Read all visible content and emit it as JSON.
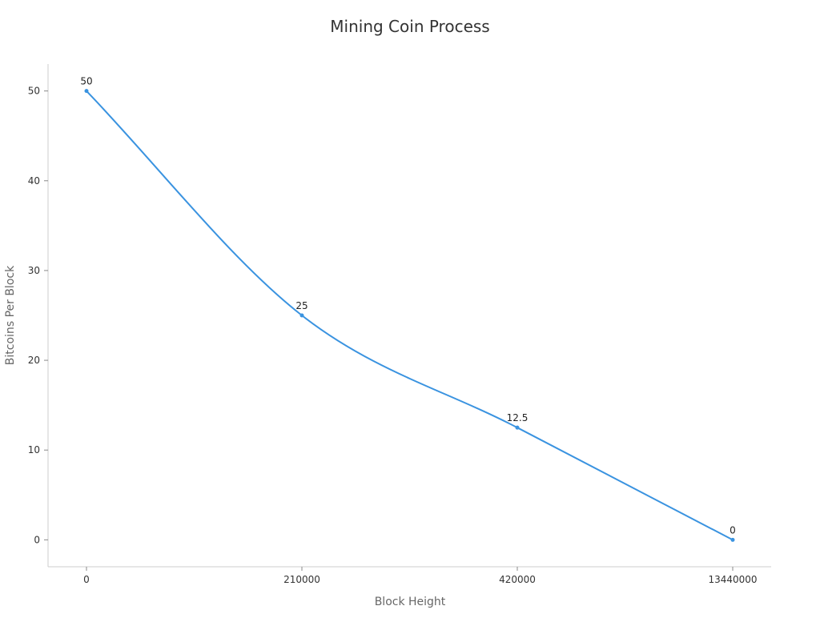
{
  "chart_data": {
    "type": "line",
    "title": "Mining Coin Process",
    "xlabel": "Block Height",
    "ylabel": "Bitcoins Per Block",
    "categories": [
      "0",
      "210000",
      "420000",
      "13440000"
    ],
    "series": [
      {
        "values": [
          50,
          25,
          12.5,
          0
        ],
        "color": "#3a93e0",
        "smooth": true,
        "data_labels": [
          "50",
          "25",
          "12.5",
          "0"
        ]
      }
    ],
    "ylim": [
      -3,
      53
    ],
    "y_ticks": [
      0,
      10,
      20,
      30,
      40,
      50
    ],
    "grid": false,
    "legend": "none"
  }
}
